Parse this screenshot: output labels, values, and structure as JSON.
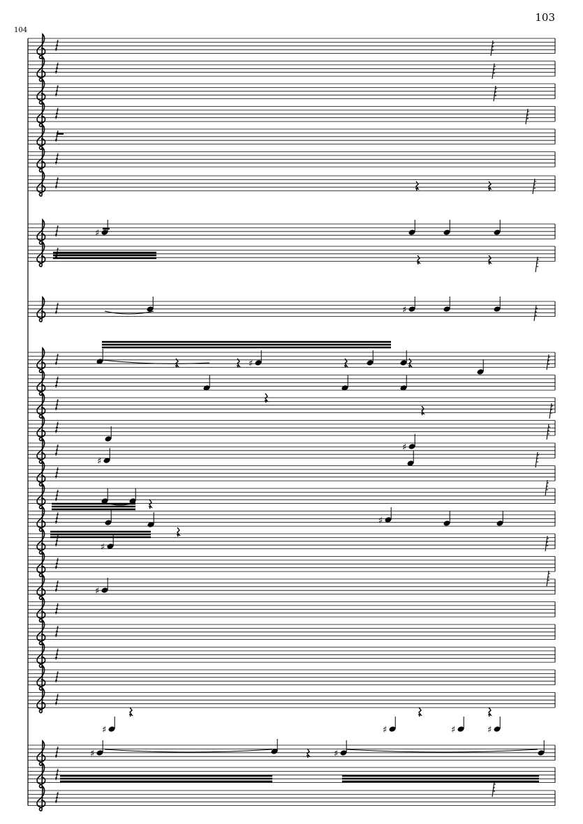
{
  "page": {
    "page_number": "103",
    "measure_number": "104"
  },
  "score": {
    "clef": "treble-clef",
    "ink_color": "#000000",
    "background_color": "#ffffff"
  }
}
